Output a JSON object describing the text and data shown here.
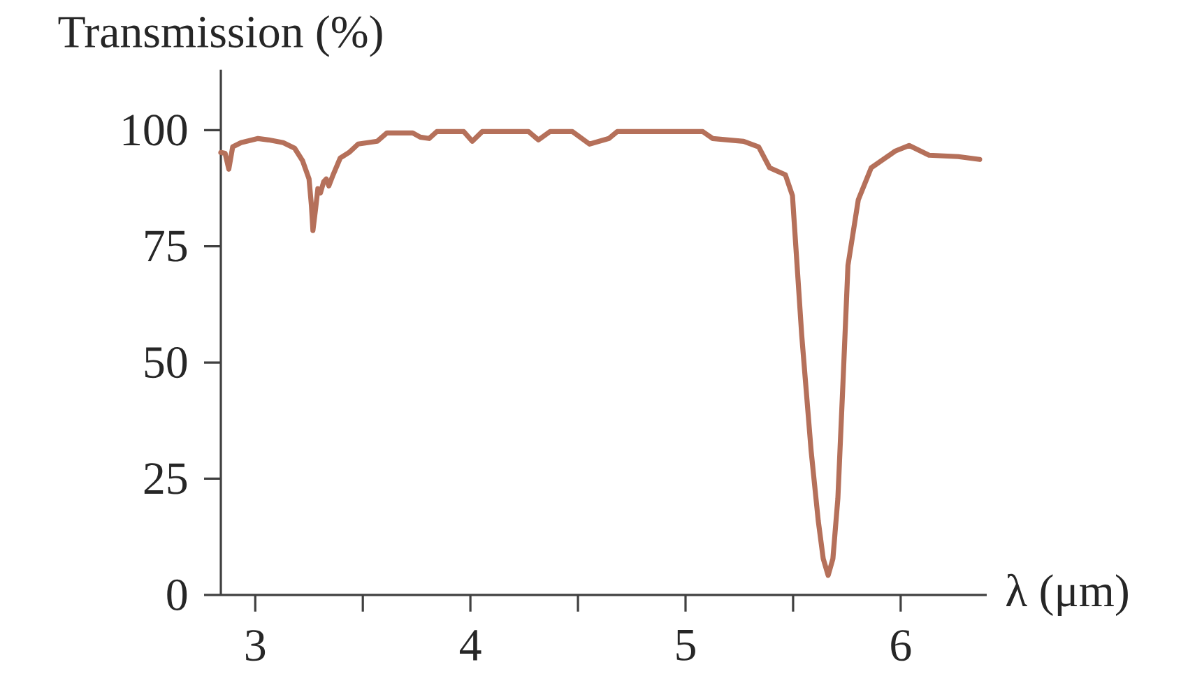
{
  "chart_data": {
    "type": "line",
    "ylabel": "Transmission (%)",
    "xlabel": "λ (μm)",
    "x": [
      2.84,
      2.86,
      2.877,
      2.895,
      2.934,
      3.013,
      3.062,
      3.13,
      3.183,
      3.22,
      3.25,
      3.261,
      3.268,
      3.28,
      3.291,
      3.303,
      3.318,
      3.33,
      3.342,
      3.362,
      3.395,
      3.436,
      3.478,
      3.567,
      3.612,
      3.732,
      3.767,
      3.808,
      3.844,
      3.969,
      4.009,
      4.055,
      4.27,
      4.316,
      4.37,
      4.474,
      4.554,
      4.644,
      4.683,
      5.08,
      5.126,
      5.27,
      5.34,
      5.391,
      5.464,
      5.497,
      5.54,
      5.584,
      5.617,
      5.64,
      5.663,
      5.685,
      5.708,
      5.732,
      5.755,
      5.803,
      5.863,
      5.975,
      6.039,
      6.132,
      6.268,
      6.367
    ],
    "series": [
      {
        "color": "#b5705a",
        "values": [
          95.2,
          95,
          91.6,
          96.4,
          97.3,
          98.2,
          97.9,
          97.3,
          96.1,
          93.4,
          89.5,
          83.8,
          78.4,
          82.9,
          87.4,
          86.5,
          88.9,
          89.5,
          88,
          90.4,
          94,
          95.2,
          97,
          97.6,
          99.4,
          99.4,
          98.5,
          98.2,
          99.7,
          99.7,
          97.6,
          99.7,
          99.7,
          97.9,
          99.7,
          99.7,
          97,
          98.2,
          99.7,
          99.7,
          98.2,
          97.6,
          96.4,
          91.9,
          90.4,
          85.9,
          55.9,
          30.9,
          15.9,
          7.8,
          4.2,
          7.8,
          20.7,
          45.9,
          70.9,
          85,
          91.9,
          95.5,
          96.7,
          94.6,
          94.3,
          93.7
        ]
      }
    ],
    "xlim": [
      2.84,
      6.4
    ],
    "ylim": [
      0,
      113
    ],
    "xticks": [
      3,
      {
        "value": 3.5,
        "label": null
      },
      4,
      {
        "value": 4.5,
        "label": null
      },
      5,
      {
        "value": 5.5,
        "label": null
      },
      6
    ],
    "yticks": [
      0,
      25,
      50,
      75,
      100
    ],
    "grid": false,
    "marker": "none",
    "line_style": "solid"
  }
}
